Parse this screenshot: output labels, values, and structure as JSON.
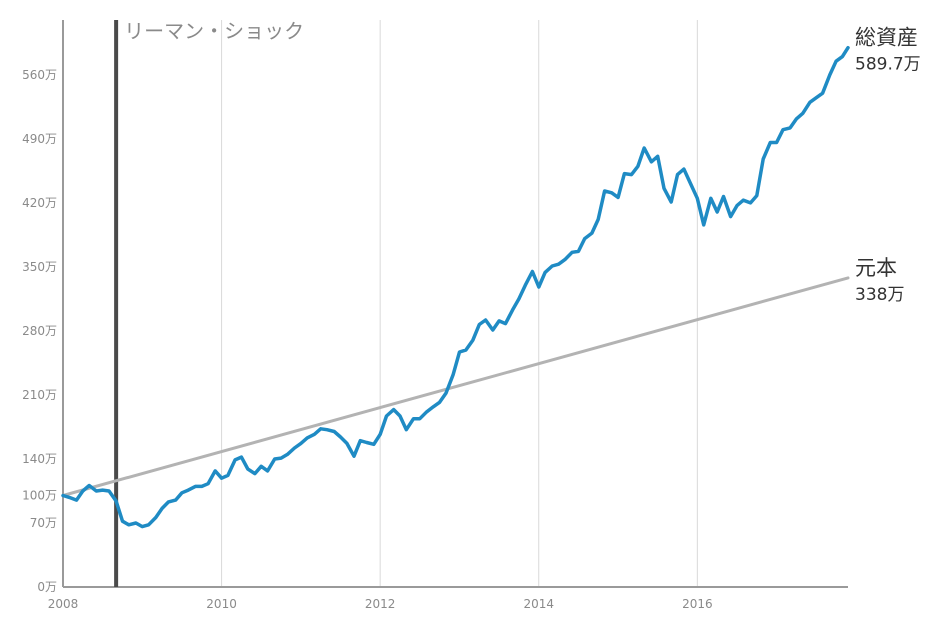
{
  "chart_data": {
    "type": "line",
    "title": "",
    "xlabel": "",
    "ylabel": "",
    "xlim": [
      2008,
      2017.9
    ],
    "ylim": [
      0,
      620
    ],
    "x_ticks": [
      {
        "value": 2008,
        "label": "2008"
      },
      {
        "value": 2010,
        "label": "2010"
      },
      {
        "value": 2012,
        "label": "2012"
      },
      {
        "value": 2014,
        "label": "2014"
      },
      {
        "value": 2016,
        "label": "2016"
      }
    ],
    "y_ticks": [
      {
        "value": 0,
        "label": "0万"
      },
      {
        "value": 70,
        "label": "70万"
      },
      {
        "value": 100,
        "label": "100万"
      },
      {
        "value": 140,
        "label": "140万"
      },
      {
        "value": 210,
        "label": "210万"
      },
      {
        "value": 280,
        "label": "280万"
      },
      {
        "value": 350,
        "label": "350万"
      },
      {
        "value": 420,
        "label": "420万"
      },
      {
        "value": 490,
        "label": "490万"
      },
      {
        "value": 560,
        "label": "560万"
      }
    ],
    "grid": "vertical",
    "event": {
      "x": 2008.67,
      "label": "リーマン・ショック",
      "color": "#4a4a4a"
    },
    "series": [
      {
        "name": "総資産",
        "end_label": "589.7万",
        "color": "#1f8bc4",
        "points": [
          [
            2008.0,
            100
          ],
          [
            2008.08,
            98
          ],
          [
            2008.17,
            95
          ],
          [
            2008.25,
            105
          ],
          [
            2008.33,
            111
          ],
          [
            2008.42,
            105
          ],
          [
            2008.5,
            106
          ],
          [
            2008.58,
            105
          ],
          [
            2008.67,
            94
          ],
          [
            2008.75,
            72
          ],
          [
            2008.83,
            68
          ],
          [
            2008.92,
            70
          ],
          [
            2009.0,
            66
          ],
          [
            2009.08,
            68
          ],
          [
            2009.17,
            76
          ],
          [
            2009.25,
            86
          ],
          [
            2009.33,
            93
          ],
          [
            2009.42,
            95
          ],
          [
            2009.5,
            103
          ],
          [
            2009.58,
            106
          ],
          [
            2009.67,
            110
          ],
          [
            2009.75,
            110
          ],
          [
            2009.83,
            113
          ],
          [
            2009.92,
            127
          ],
          [
            2010.0,
            119
          ],
          [
            2010.08,
            122
          ],
          [
            2010.17,
            139
          ],
          [
            2010.25,
            142
          ],
          [
            2010.33,
            129
          ],
          [
            2010.42,
            124
          ],
          [
            2010.5,
            132
          ],
          [
            2010.58,
            127
          ],
          [
            2010.67,
            140
          ],
          [
            2010.75,
            141
          ],
          [
            2010.83,
            145
          ],
          [
            2010.92,
            152
          ],
          [
            2011.0,
            157
          ],
          [
            2011.08,
            163
          ],
          [
            2011.17,
            167
          ],
          [
            2011.25,
            173
          ],
          [
            2011.33,
            172
          ],
          [
            2011.42,
            170
          ],
          [
            2011.5,
            164
          ],
          [
            2011.58,
            157
          ],
          [
            2011.67,
            143
          ],
          [
            2011.75,
            160
          ],
          [
            2011.83,
            158
          ],
          [
            2011.92,
            156
          ],
          [
            2012.0,
            167
          ],
          [
            2012.08,
            187
          ],
          [
            2012.17,
            194
          ],
          [
            2012.25,
            187
          ],
          [
            2012.33,
            172
          ],
          [
            2012.42,
            184
          ],
          [
            2012.5,
            184
          ],
          [
            2012.58,
            191
          ],
          [
            2012.67,
            197
          ],
          [
            2012.75,
            202
          ],
          [
            2012.83,
            212
          ],
          [
            2012.92,
            232
          ],
          [
            2013.0,
            257
          ],
          [
            2013.08,
            259
          ],
          [
            2013.17,
            270
          ],
          [
            2013.25,
            287
          ],
          [
            2013.33,
            292
          ],
          [
            2013.42,
            281
          ],
          [
            2013.5,
            291
          ],
          [
            2013.58,
            288
          ],
          [
            2013.67,
            303
          ],
          [
            2013.75,
            315
          ],
          [
            2013.83,
            330
          ],
          [
            2013.92,
            345
          ],
          [
            2014.0,
            328
          ],
          [
            2014.08,
            344
          ],
          [
            2014.17,
            351
          ],
          [
            2014.25,
            353
          ],
          [
            2014.33,
            358
          ],
          [
            2014.42,
            366
          ],
          [
            2014.5,
            367
          ],
          [
            2014.58,
            381
          ],
          [
            2014.67,
            387
          ],
          [
            2014.75,
            402
          ],
          [
            2014.83,
            433
          ],
          [
            2014.92,
            431
          ],
          [
            2015.0,
            426
          ],
          [
            2015.08,
            452
          ],
          [
            2015.17,
            451
          ],
          [
            2015.25,
            460
          ],
          [
            2015.33,
            480
          ],
          [
            2015.42,
            465
          ],
          [
            2015.5,
            471
          ],
          [
            2015.58,
            436
          ],
          [
            2015.67,
            421
          ],
          [
            2015.75,
            451
          ],
          [
            2015.83,
            457
          ],
          [
            2015.92,
            440
          ],
          [
            2016.0,
            425
          ],
          [
            2016.08,
            396
          ],
          [
            2016.17,
            425
          ],
          [
            2016.25,
            410
          ],
          [
            2016.33,
            427
          ],
          [
            2016.42,
            405
          ],
          [
            2016.5,
            417
          ],
          [
            2016.58,
            423
          ],
          [
            2016.67,
            420
          ],
          [
            2016.75,
            428
          ],
          [
            2016.83,
            468
          ],
          [
            2016.92,
            486
          ],
          [
            2017.0,
            486
          ],
          [
            2017.08,
            500
          ],
          [
            2017.17,
            502
          ],
          [
            2017.25,
            512
          ],
          [
            2017.33,
            518
          ],
          [
            2017.42,
            530
          ],
          [
            2017.5,
            535
          ],
          [
            2017.58,
            540
          ],
          [
            2017.67,
            560
          ],
          [
            2017.75,
            575
          ],
          [
            2017.83,
            580
          ],
          [
            2017.9,
            589.7
          ]
        ]
      },
      {
        "name": "元本",
        "end_label": "338万",
        "color": "#b3b3b3",
        "points": [
          [
            2008.0,
            100
          ],
          [
            2017.9,
            338
          ]
        ]
      }
    ]
  }
}
